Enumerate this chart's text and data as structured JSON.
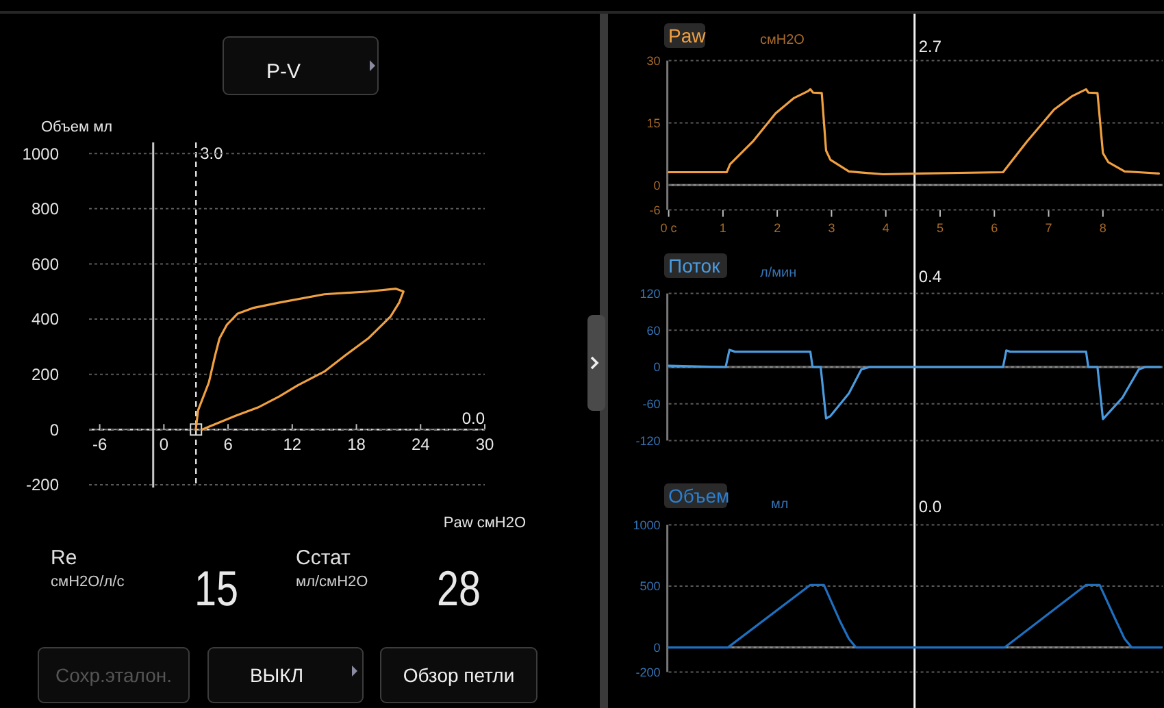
{
  "chart_data": [
    {
      "type": "line",
      "xlabel": "Paw смH2O",
      "ylabel": "Объем мл",
      "xlim": [
        -7,
        30
      ],
      "ylim": [
        -210,
        1040
      ],
      "xticks": [
        -6,
        0,
        6,
        12,
        18,
        24,
        30
      ],
      "yticks": [
        -200,
        0,
        200,
        400,
        600,
        800,
        1000
      ],
      "grid": "y",
      "marker": "none",
      "line_style": "solid",
      "series": [
        {
          "color": "#f0a040",
          "x": [
            2.98,
            3.2,
            4.2,
            4.8,
            5.2,
            5.9,
            6.9,
            8.3,
            10.8,
            15,
            19.1,
            21.7,
            22.4,
            22,
            21.2,
            19.1,
            17,
            15,
            12.5,
            10.8,
            8.8,
            6.7,
            4.2,
            3.6
          ],
          "values": [
            0,
            70,
            170,
            270,
            330,
            380,
            420,
            440,
            460,
            490,
            500,
            510,
            500,
            460,
            410,
            330,
            270,
            210,
            160,
            120,
            80,
            50,
            10,
            0
          ]
        }
      ],
      "ref_lines": [
        {
          "axis": "x",
          "value": -1,
          "label": null,
          "line_style": "solid",
          "color": "#c8c8c8"
        },
        {
          "axis": "x",
          "value": 3,
          "label": "3.0",
          "line_style": "dashed",
          "color": "#e0e0e0"
        },
        {
          "axis": "y",
          "value": 0,
          "label": "0.0",
          "line_style": "dashed",
          "color": "#e0e0e0"
        }
      ]
    },
    {
      "type": "line",
      "title": "Paw",
      "ylabel": "смH2O",
      "xlim": [
        0,
        9.1
      ],
      "ylim": [
        -6,
        30
      ],
      "xticks": [
        {
          "value": 0,
          "label": "0 с"
        },
        1,
        2,
        3,
        4,
        5,
        6,
        7,
        8
      ],
      "yticks": [
        -6,
        0,
        15,
        30
      ],
      "grid": "y",
      "marker": "none",
      "line_style": "solid",
      "series": [
        {
          "color": "#f0a040",
          "x": [
            0,
            1.07,
            1.13,
            1.55,
            1.97,
            2.31,
            2.56,
            2.61,
            2.66,
            2.82,
            2.9,
            2.98,
            3.32,
            3.57,
            3.95,
            4.66,
            6.16,
            6.6,
            7.1,
            7.44,
            7.69,
            7.73,
            7.9,
            8,
            8.1,
            8.4,
            8.65,
            9.03
          ],
          "values": [
            3.1,
            3.1,
            5,
            10.5,
            17.3,
            21,
            22.6,
            23.1,
            22.3,
            22.2,
            8.3,
            6.1,
            3.3,
            3,
            2.6,
            2.8,
            3.1,
            10.5,
            18.2,
            21.5,
            23.1,
            22.3,
            22.2,
            7.7,
            5.5,
            3.3,
            3.1,
            2.8
          ]
        }
      ],
      "ref_lines": [
        {
          "axis": "y",
          "value": 0,
          "label": null,
          "line_style": "solid",
          "color": "#8a8a8a"
        },
        {
          "axis": "x",
          "value": 4.53,
          "label": null,
          "line_style": "solid",
          "color": "#f0f0f0"
        }
      ],
      "annotations": [
        "2.7"
      ]
    },
    {
      "type": "line",
      "title": "Поток",
      "ylabel": "л/мин",
      "xlim": [
        0,
        9.1
      ],
      "ylim": [
        -120,
        120
      ],
      "yticks": [
        -120,
        -60,
        0,
        60,
        120
      ],
      "tick_labels": "y",
      "grid": "y",
      "marker": "none",
      "line_style": "solid",
      "series": [
        {
          "color": "#4a9be0",
          "x": [
            0,
            1.05,
            1.12,
            1.22,
            2.61,
            2.65,
            2.8,
            2.9,
            2.98,
            3.32,
            3.55,
            3.7,
            6.16,
            6.22,
            6.29,
            7.69,
            7.73,
            7.9,
            8,
            8.36,
            8.66,
            8.78,
            9.05
          ],
          "values": [
            2,
            0,
            28,
            25,
            25,
            0,
            0,
            -84,
            -80,
            -43,
            -4,
            0,
            0,
            27,
            25,
            25,
            0,
            0,
            -85,
            -50,
            -4,
            0,
            0
          ]
        }
      ],
      "ref_lines": [
        {
          "axis": "y",
          "value": 0,
          "label": null,
          "line_style": "solid",
          "color": "#8a8a8a"
        },
        {
          "axis": "x",
          "value": 4.53,
          "label": null,
          "line_style": "solid",
          "color": "#f0f0f0"
        }
      ],
      "annotations": [
        "0.4"
      ]
    },
    {
      "type": "line",
      "title": "Объем",
      "ylabel": "мл",
      "xlim": [
        0,
        9.1
      ],
      "ylim": [
        -200,
        1000
      ],
      "yticks": [
        -200,
        0,
        500,
        1000
      ],
      "tick_labels": "y",
      "grid": "y",
      "marker": "none",
      "line_style": "solid",
      "series": [
        {
          "color": "#1f6fc0",
          "x": [
            0,
            1.09,
            2.61,
            2.86,
            3.15,
            3.32,
            3.45,
            6.19,
            7.69,
            7.94,
            8.24,
            8.4,
            8.53,
            9.08
          ],
          "values": [
            0,
            0,
            510,
            510,
            220,
            70,
            0,
            0,
            510,
            510,
            220,
            70,
            0,
            0
          ]
        }
      ],
      "ref_lines": [
        {
          "axis": "y",
          "value": 0,
          "label": null,
          "line_style": "solid",
          "color": "#8a8a8a"
        },
        {
          "axis": "x",
          "value": 4.53,
          "label": null,
          "line_style": "solid",
          "color": "#f0f0f0"
        }
      ],
      "annotations": [
        "0.0"
      ]
    },
    {
      "type": "other",
      "annotations": [
        "P-V",
        "Re",
        "смH2O/л/с",
        "15",
        "Сстат",
        "мл/смH2O",
        "28",
        "Сохр.эталон.",
        "ВЫКЛ",
        "Обзор петли"
      ]
    }
  ]
}
